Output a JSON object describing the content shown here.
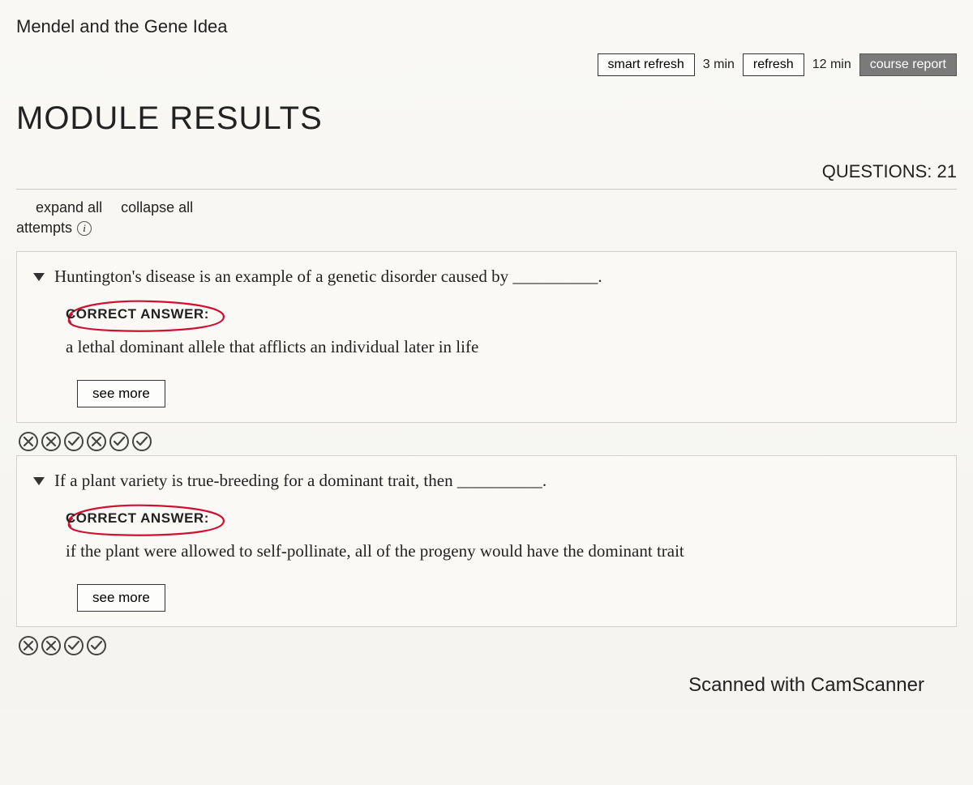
{
  "header": {
    "module_title": "Mendel and the Gene Idea",
    "smart_refresh_label": "smart refresh",
    "smart_refresh_time": "3 min",
    "refresh_label": "refresh",
    "refresh_time": "12 min",
    "course_report_label": "course report"
  },
  "page_heading": "MODULE RESULTS",
  "questions_label": "QUESTIONS: 21",
  "controls": {
    "expand_all": "expand all",
    "collapse_all": "collapse all",
    "attempts": "attempts"
  },
  "correct_answer_label": "CORRECT ANSWER:",
  "see_more_label": "see more",
  "questions": [
    {
      "prompt": "Huntington's disease is an example of a genetic disorder caused by __________.",
      "answer": "a lethal dominant allele that afflicts an individual later in life",
      "attempts": [
        "wrong",
        "wrong",
        "right",
        "wrong",
        "right",
        "right"
      ]
    },
    {
      "prompt": "If a plant variety is true-breeding for a dominant trait, then __________.",
      "answer": "if the plant were allowed to self-pollinate, all of the progeny would have the dominant trait",
      "attempts": [
        "wrong",
        "wrong",
        "right",
        "right"
      ]
    }
  ],
  "watermark": "Scanned with CamScanner",
  "colors": {
    "circle_annotation": "#d01030",
    "icon_stroke": "#444444",
    "btn_dark_bg": "#7a7a7a"
  }
}
